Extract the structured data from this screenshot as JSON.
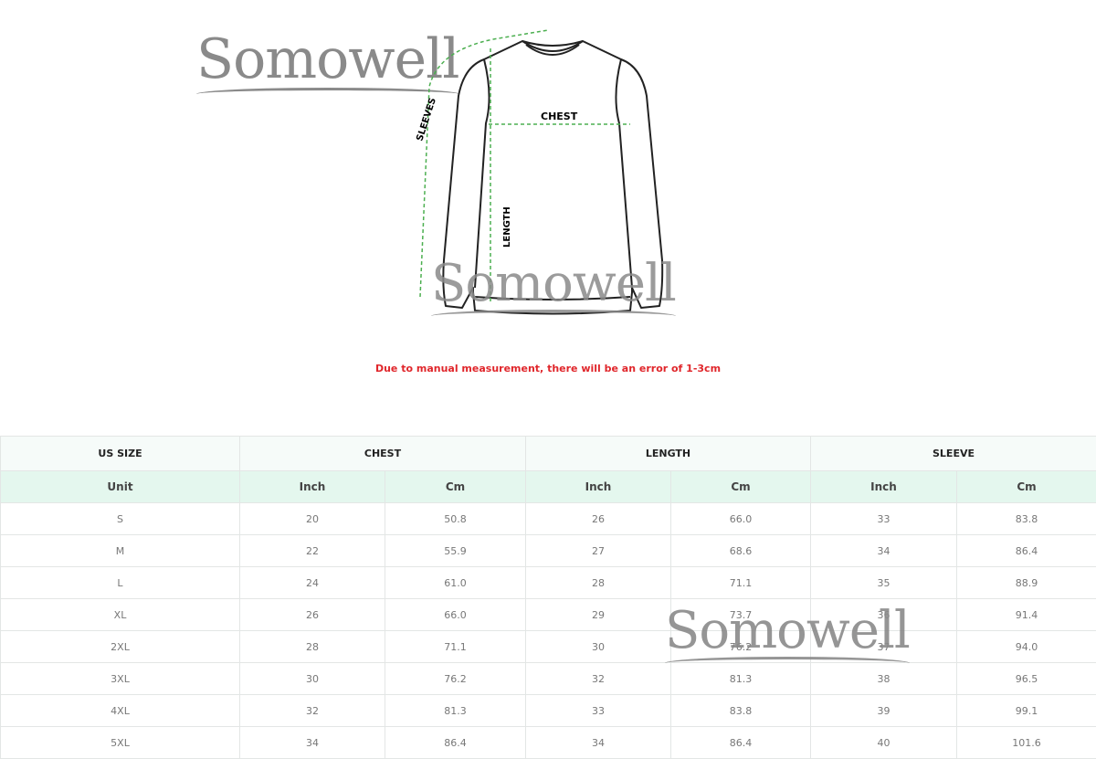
{
  "watermark": "Somowell",
  "diagram": {
    "labels": {
      "sleeves": "SLEEVES",
      "chest": "CHEST",
      "length": "LENGTH"
    },
    "arrow_color": "#4caf50"
  },
  "note": "Due to manual measurement, there will be an error of 1-3cm",
  "note_color": "#e0262b",
  "table": {
    "group_headers": [
      "US SIZE",
      "CHEST",
      "LENGTH",
      "SLEEVE"
    ],
    "unit_headers": [
      "Unit",
      "Inch",
      "Cm",
      "Inch",
      "Cm",
      "Inch",
      "Cm"
    ],
    "rows": [
      [
        "S",
        "20",
        "50.8",
        "26",
        "66.0",
        "33",
        "83.8"
      ],
      [
        "M",
        "22",
        "55.9",
        "27",
        "68.6",
        "34",
        "86.4"
      ],
      [
        "L",
        "24",
        "61.0",
        "28",
        "71.1",
        "35",
        "88.9"
      ],
      [
        "XL",
        "26",
        "66.0",
        "29",
        "73.7",
        "36",
        "91.4"
      ],
      [
        "2XL",
        "28",
        "71.1",
        "30",
        "76.2",
        "37",
        "94.0"
      ],
      [
        "3XL",
        "30",
        "76.2",
        "32",
        "81.3",
        "38",
        "96.5"
      ],
      [
        "4XL",
        "32",
        "81.3",
        "33",
        "83.8",
        "39",
        "99.1"
      ],
      [
        "5XL",
        "34",
        "86.4",
        "34",
        "86.4",
        "40",
        "101.6"
      ]
    ]
  }
}
